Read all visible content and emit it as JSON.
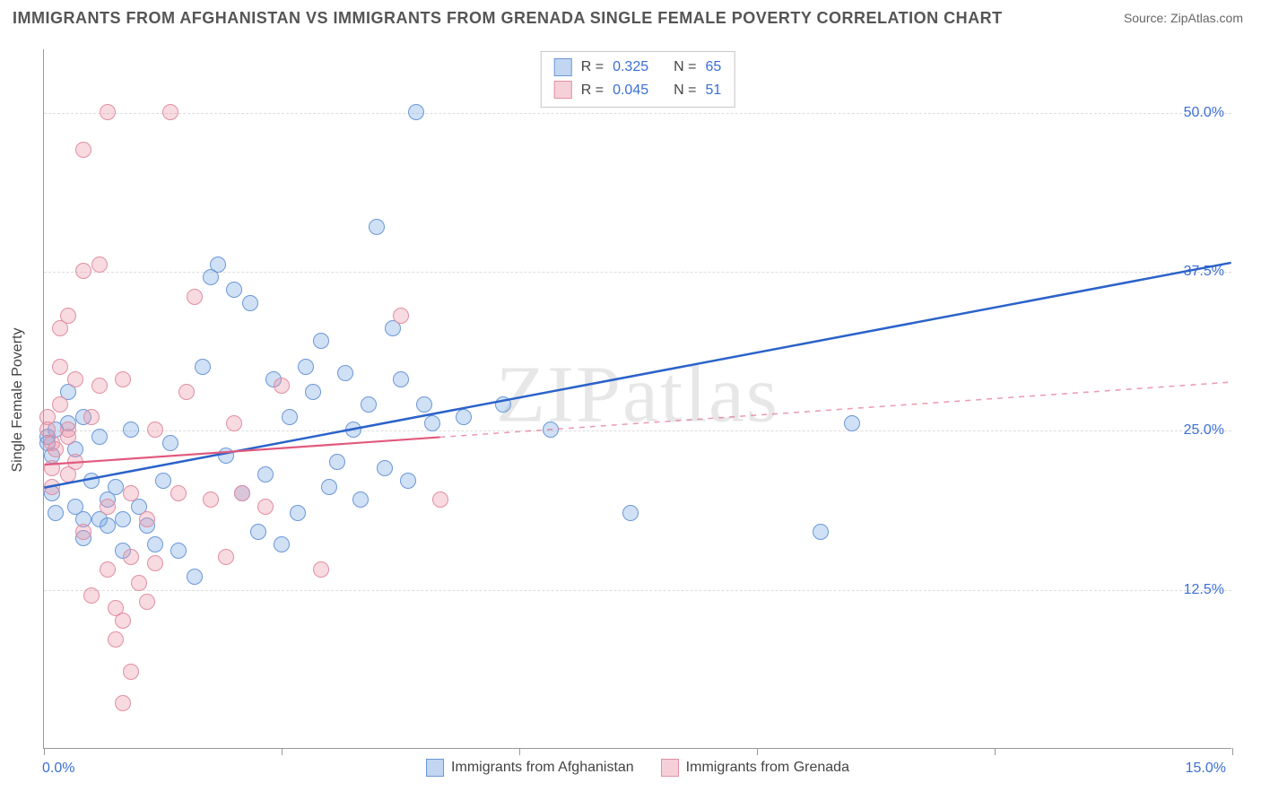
{
  "title": "IMMIGRANTS FROM AFGHANISTAN VS IMMIGRANTS FROM GRENADA SINGLE FEMALE POVERTY CORRELATION CHART",
  "source": "Source: ZipAtlas.com",
  "watermark": "ZIPatlas",
  "y_axis_title": "Single Female Poverty",
  "chart": {
    "type": "scatter",
    "xlim": [
      0,
      15
    ],
    "ylim": [
      0,
      55
    ],
    "y_ticks": [
      12.5,
      25.0,
      37.5,
      50.0
    ],
    "y_tick_labels": [
      "12.5%",
      "25.0%",
      "37.5%",
      "50.0%"
    ],
    "x_ticks": [
      0,
      3,
      6,
      9,
      12,
      15
    ],
    "x_min_label": "0.0%",
    "x_max_label": "15.0%",
    "background_color": "#ffffff",
    "grid_color": "#dcdcdc",
    "marker_radius": 9,
    "marker_stroke_width": 1.2,
    "series": [
      {
        "id": "afghanistan",
        "label": "Immigrants from Afghanistan",
        "fill": "rgba(120,165,225,0.35)",
        "stroke": "#6a98d8",
        "r_value": "0.325",
        "n_value": "65",
        "trend": {
          "x1": 0,
          "y1": 20.5,
          "x2": 15,
          "y2": 38.2,
          "solid_until_x": 15,
          "color": "#2b62c9",
          "width": 2.5
        },
        "points": [
          [
            0.05,
            24.5
          ],
          [
            0.05,
            24.0
          ],
          [
            0.1,
            23.0
          ],
          [
            0.1,
            20.0
          ],
          [
            0.15,
            25.0
          ],
          [
            0.15,
            18.5
          ],
          [
            0.3,
            28.0
          ],
          [
            0.3,
            25.5
          ],
          [
            0.4,
            23.5
          ],
          [
            0.4,
            19.0
          ],
          [
            0.5,
            26.0
          ],
          [
            0.5,
            18.0
          ],
          [
            0.5,
            16.5
          ],
          [
            0.6,
            21.0
          ],
          [
            0.7,
            24.5
          ],
          [
            0.7,
            18.0
          ],
          [
            0.8,
            17.5
          ],
          [
            0.8,
            19.5
          ],
          [
            0.9,
            20.5
          ],
          [
            1.0,
            18.0
          ],
          [
            1.0,
            15.5
          ],
          [
            1.1,
            25.0
          ],
          [
            1.2,
            19.0
          ],
          [
            1.3,
            17.5
          ],
          [
            1.4,
            16.0
          ],
          [
            1.5,
            21.0
          ],
          [
            1.6,
            24.0
          ],
          [
            1.7,
            15.5
          ],
          [
            1.9,
            13.5
          ],
          [
            2.0,
            30.0
          ],
          [
            2.1,
            37.0
          ],
          [
            2.2,
            38.0
          ],
          [
            2.3,
            23.0
          ],
          [
            2.4,
            36.0
          ],
          [
            2.5,
            20.0
          ],
          [
            2.6,
            35.0
          ],
          [
            2.7,
            17.0
          ],
          [
            2.8,
            21.5
          ],
          [
            2.9,
            29.0
          ],
          [
            3.0,
            16.0
          ],
          [
            3.1,
            26.0
          ],
          [
            3.2,
            18.5
          ],
          [
            3.3,
            30.0
          ],
          [
            3.4,
            28.0
          ],
          [
            3.5,
            32.0
          ],
          [
            3.6,
            20.5
          ],
          [
            3.7,
            22.5
          ],
          [
            3.8,
            29.5
          ],
          [
            3.9,
            25.0
          ],
          [
            4.0,
            19.5
          ],
          [
            4.1,
            27.0
          ],
          [
            4.2,
            41.0
          ],
          [
            4.3,
            22.0
          ],
          [
            4.4,
            33.0
          ],
          [
            4.5,
            29.0
          ],
          [
            4.6,
            21.0
          ],
          [
            4.7,
            50.0
          ],
          [
            4.8,
            27.0
          ],
          [
            4.9,
            25.5
          ],
          [
            5.3,
            26.0
          ],
          [
            5.8,
            27.0
          ],
          [
            6.4,
            25.0
          ],
          [
            7.4,
            18.5
          ],
          [
            9.8,
            17.0
          ],
          [
            10.2,
            25.5
          ]
        ]
      },
      {
        "id": "grenada",
        "label": "Immigrants from Grenada",
        "fill": "rgba(235,150,170,0.35)",
        "stroke": "#e18fa1",
        "r_value": "0.045",
        "n_value": "51",
        "trend": {
          "x1": 0,
          "y1": 22.3,
          "x2": 15,
          "y2": 28.8,
          "solid_until_x": 5.0,
          "color": "#e15a7d",
          "width": 2.2,
          "dash": "6,6"
        },
        "points": [
          [
            0.05,
            26.0
          ],
          [
            0.05,
            25.0
          ],
          [
            0.1,
            24.0
          ],
          [
            0.1,
            22.0
          ],
          [
            0.1,
            20.5
          ],
          [
            0.15,
            23.5
          ],
          [
            0.2,
            33.0
          ],
          [
            0.2,
            30.0
          ],
          [
            0.2,
            27.0
          ],
          [
            0.3,
            25.0
          ],
          [
            0.3,
            34.0
          ],
          [
            0.3,
            21.5
          ],
          [
            0.3,
            24.5
          ],
          [
            0.4,
            29.0
          ],
          [
            0.4,
            22.5
          ],
          [
            0.5,
            47.0
          ],
          [
            0.5,
            37.5
          ],
          [
            0.5,
            17.0
          ],
          [
            0.6,
            26.0
          ],
          [
            0.6,
            12.0
          ],
          [
            0.7,
            28.5
          ],
          [
            0.7,
            38.0
          ],
          [
            0.8,
            50.0
          ],
          [
            0.8,
            14.0
          ],
          [
            0.8,
            19.0
          ],
          [
            0.9,
            11.0
          ],
          [
            0.9,
            8.5
          ],
          [
            1.0,
            10.0
          ],
          [
            1.0,
            29.0
          ],
          [
            1.0,
            3.5
          ],
          [
            1.1,
            20.0
          ],
          [
            1.1,
            15.0
          ],
          [
            1.1,
            6.0
          ],
          [
            1.2,
            13.0
          ],
          [
            1.3,
            18.0
          ],
          [
            1.3,
            11.5
          ],
          [
            1.4,
            14.5
          ],
          [
            1.4,
            25.0
          ],
          [
            1.6,
            50.0
          ],
          [
            1.7,
            20.0
          ],
          [
            1.8,
            28.0
          ],
          [
            1.9,
            35.5
          ],
          [
            2.1,
            19.5
          ],
          [
            2.3,
            15.0
          ],
          [
            2.4,
            25.5
          ],
          [
            2.5,
            20.0
          ],
          [
            2.8,
            19.0
          ],
          [
            3.0,
            28.5
          ],
          [
            3.5,
            14.0
          ],
          [
            4.5,
            34.0
          ],
          [
            5.0,
            19.5
          ]
        ]
      }
    ]
  },
  "legend_top_labels": {
    "r": "R  =",
    "n": "N  ="
  }
}
